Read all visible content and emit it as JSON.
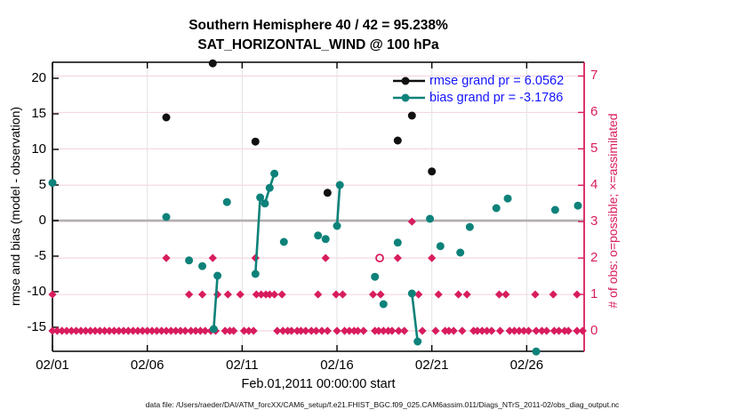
{
  "chart_data": {
    "type": "scatter",
    "title": "Southern Hemisphere 40 / 42 = 95.238%",
    "subtitle": "SAT_HORIZONTAL_WIND @ 100 hPa",
    "xlabel": "Feb.01,2011 00:00:00 start",
    "ylabel_left": "rmse and bias (model - observation)",
    "ylabel_right": "# of obs: o=possible; ×=assimilated",
    "footer": "data file: /Users/raeder/DAI/ATM_forcXX/CAM6_setup/f.e21.FHIST_BGC.f09_025.CAM6assim.011/Diags_NTrS_2011-02/obs_diag_output.nc",
    "colors": {
      "rmse": "#111111",
      "bias": "#0e827a",
      "obs": "#d81c5e",
      "legend_text": "#1414ff"
    },
    "xlim_days": [
      0,
      28.03
    ],
    "x_ticks": {
      "days": [
        0,
        5,
        10,
        15,
        20,
        25
      ],
      "labels": [
        "02/01",
        "02/06",
        "02/11",
        "02/16",
        "02/21",
        "02/26"
      ]
    },
    "ylim_left": [
      -18.4,
      22.25
    ],
    "yticks_left": [
      20,
      15,
      10,
      5,
      0,
      -5,
      -10,
      -15
    ],
    "ylim_right": [
      -0.56,
      7.38
    ],
    "yticks_right": [
      7,
      6,
      5,
      4,
      3,
      2,
      1,
      0
    ],
    "grid": {
      "horizontal_at_right_counts": [
        0,
        1,
        2,
        3,
        4,
        5,
        6,
        7
      ],
      "zero_line_left": 0
    },
    "legend": [
      {
        "label": "rmse grand pr = 6.0562",
        "color": "#111111"
      },
      {
        "label": "bias grand pr = -3.1786",
        "color": "#0e827a"
      }
    ],
    "series": [
      {
        "name": "rmse",
        "axis": "left",
        "marker": "circle",
        "color": "#111111",
        "points": [
          [
            6.0,
            14.5
          ],
          [
            8.45,
            22.1
          ],
          [
            10.7,
            11.1
          ],
          [
            14.5,
            3.9
          ],
          [
            18.2,
            11.25
          ],
          [
            18.95,
            14.75
          ],
          [
            20.0,
            6.9
          ]
        ]
      },
      {
        "name": "bias",
        "axis": "left",
        "marker": "circle",
        "color": "#0e827a",
        "points": [
          [
            0,
            5.3
          ],
          [
            6,
            0.5
          ],
          [
            7.2,
            -5.6
          ],
          [
            7.9,
            -6.4
          ],
          [
            8.5,
            -15.25
          ],
          [
            8.7,
            -7.75
          ],
          [
            9.2,
            2.6
          ],
          [
            10.7,
            -7.5
          ],
          [
            10.95,
            3.25
          ],
          [
            11.2,
            2.4
          ],
          [
            11.45,
            4.6
          ],
          [
            11.7,
            6.6
          ],
          [
            12.2,
            -3.0
          ],
          [
            14.0,
            -2.1
          ],
          [
            14.4,
            -2.6
          ],
          [
            15.0,
            -0.75
          ],
          [
            15.15,
            5.0
          ],
          [
            17.0,
            -7.9
          ],
          [
            17.45,
            -11.75
          ],
          [
            18.2,
            -3.1
          ],
          [
            18.95,
            -10.25
          ],
          [
            19.25,
            -17.0
          ],
          [
            19.9,
            0.25
          ],
          [
            20.45,
            -3.6
          ],
          [
            21.5,
            -4.5
          ],
          [
            22.0,
            -0.9
          ],
          [
            23.4,
            1.75
          ],
          [
            24.0,
            3.1
          ],
          [
            25.5,
            -18.4
          ],
          [
            26.5,
            1.5
          ],
          [
            27.7,
            2.1
          ]
        ],
        "segments": [
          [
            [
              8.5,
              -15.25
            ],
            [
              8.7,
              -7.75
            ]
          ],
          [
            [
              10.7,
              -7.5
            ],
            [
              10.95,
              3.25
            ],
            [
              11.2,
              2.4
            ],
            [
              11.45,
              4.6
            ],
            [
              11.7,
              6.6
            ]
          ],
          [
            [
              15.0,
              -0.75
            ],
            [
              15.15,
              5.0
            ]
          ],
          [
            [
              18.95,
              -10.25
            ],
            [
              19.25,
              -17.0
            ]
          ]
        ]
      },
      {
        "name": "obs_assimilated",
        "axis": "right",
        "marker": "diamond",
        "color": "#d81c5e",
        "counts": {
          "0": [
            0,
            0.25,
            0.5,
            0.75,
            1,
            1.25,
            1.5,
            1.75,
            2,
            2.25,
            2.5,
            2.75,
            3,
            3.25,
            3.5,
            3.75,
            4,
            4.25,
            4.5,
            4.75,
            5,
            5.25,
            5.5,
            5.75,
            6,
            6.25,
            6.5,
            6.75,
            7,
            7.3,
            7.55,
            7.8,
            8.05,
            8.35,
            8.6,
            9.1,
            9.35,
            9.55,
            10.1,
            10.35,
            10.6,
            11.85,
            12.15,
            12.4,
            12.6,
            12.9,
            13.1,
            13.35,
            13.65,
            13.9,
            14.2,
            14.5,
            15,
            15.4,
            15.65,
            15.9,
            16.1,
            16.4,
            17,
            17.2,
            17.45,
            17.7,
            17.9,
            18.25,
            18.55,
            19.5,
            20.2,
            20.7,
            20.9,
            21.15,
            21.6,
            22.2,
            22.4,
            22.65,
            22.9,
            23.15,
            23.6,
            24.1,
            24.35,
            24.6,
            24.85,
            25.1,
            25.5,
            25.8,
            26.05,
            26.45,
            26.7,
            27,
            27.2,
            27.65,
            27.95
          ],
          "1": [
            0,
            7.2,
            7.9,
            8.7,
            9.25,
            9.9,
            10.75,
            11,
            11.25,
            11.45,
            11.7,
            12.1,
            14,
            14.95,
            15.3,
            16.9,
            17.3,
            19.3,
            20.35,
            21.4,
            21.85,
            23.55,
            23.9,
            25.45,
            26.4,
            27.65
          ],
          "2": [
            6,
            8.45,
            10.7,
            14.4,
            18.2,
            20
          ],
          "3": [
            18.95
          ]
        }
      },
      {
        "name": "obs_possible",
        "axis": "right",
        "marker": "open-circle",
        "color": "#d81c5e",
        "points": [
          [
            17.25,
            2
          ]
        ]
      }
    ]
  }
}
